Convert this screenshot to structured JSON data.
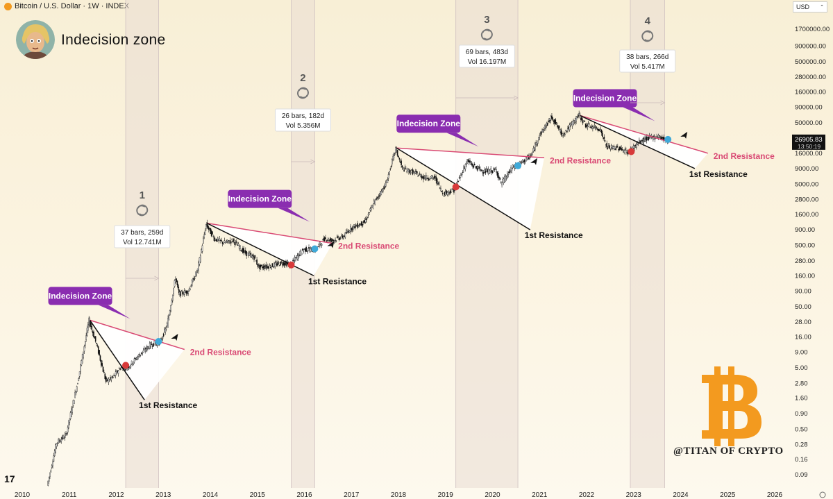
{
  "header": {
    "title": "Bitcoin / U.S. Dollar · 1W · INDEX",
    "currency": "USD"
  },
  "overlay": {
    "title": "Indecision zone",
    "watermark": "@TITAN OF CRYPTO",
    "tradingview_logo": "17"
  },
  "colors": {
    "background": "#fbf3df",
    "zone_fill": "#e9dcd3",
    "resistance_2": "#d94a74",
    "resistance_1": "#111111",
    "badge": "#8a2db0",
    "bitcoin": "#f39a1f",
    "marker_red": "#d83a3a",
    "marker_blue": "#3fa9d8"
  },
  "chart_data": {
    "type": "candlestick",
    "title": "Indecision zone",
    "x_axis": {
      "ticks": [
        "2010",
        "2011",
        "2012",
        "2013",
        "2014",
        "2015",
        "2016",
        "2017",
        "2018",
        "2019",
        "2020",
        "2021",
        "2022",
        "2023",
        "2024",
        "2025",
        "2026"
      ]
    },
    "y_axis": {
      "scale": "log",
      "ticks": [
        "0.09",
        "0.16",
        "0.28",
        "0.50",
        "0.90",
        "1.60",
        "2.80",
        "5.00",
        "9.00",
        "16.00",
        "28.00",
        "50.00",
        "90.00",
        "160.00",
        "280.00",
        "500.00",
        "900.00",
        "1600.00",
        "2800.00",
        "5000.00",
        "9000.00",
        "16000.00",
        "28000.00",
        "50000.00",
        "90000.00",
        "160000.00",
        "280000.00",
        "500000.00",
        "900000.00",
        "1700000.00"
      ]
    },
    "price": {
      "last": "26905.83",
      "countdown": "13:50:19",
      "points": [
        [
          2010.55,
          0.06
        ],
        [
          2010.75,
          0.3
        ],
        [
          2010.95,
          0.4
        ],
        [
          2011.2,
          3
        ],
        [
          2011.44,
          30
        ],
        [
          2011.6,
          12
        ],
        [
          2011.8,
          3
        ],
        [
          2011.95,
          3.5
        ],
        [
          2012.1,
          5
        ],
        [
          2012.25,
          5
        ],
        [
          2012.5,
          8
        ],
        [
          2012.75,
          12
        ],
        [
          2012.95,
          13
        ],
        [
          2013.1,
          25
        ],
        [
          2013.28,
          150
        ],
        [
          2013.35,
          80
        ],
        [
          2013.55,
          90
        ],
        [
          2013.75,
          200
        ],
        [
          2013.93,
          1100
        ],
        [
          2014.1,
          650
        ],
        [
          2014.3,
          550
        ],
        [
          2014.5,
          600
        ],
        [
          2014.75,
          380
        ],
        [
          2014.95,
          320
        ],
        [
          2015.05,
          220
        ],
        [
          2015.3,
          230
        ],
        [
          2015.55,
          260
        ],
        [
          2015.72,
          240
        ],
        [
          2015.85,
          320
        ],
        [
          2016.0,
          430
        ],
        [
          2016.25,
          420
        ],
        [
          2016.45,
          650
        ],
        [
          2016.6,
          600
        ],
        [
          2016.85,
          700
        ],
        [
          2017.0,
          950
        ],
        [
          2017.3,
          1200
        ],
        [
          2017.5,
          2500
        ],
        [
          2017.75,
          5000
        ],
        [
          2017.96,
          19000
        ],
        [
          2018.1,
          9000
        ],
        [
          2018.3,
          8000
        ],
        [
          2018.55,
          6500
        ],
        [
          2018.8,
          6300
        ],
        [
          2018.96,
          3500
        ],
        [
          2019.2,
          4000
        ],
        [
          2019.48,
          12000
        ],
        [
          2019.6,
          10000
        ],
        [
          2019.85,
          8000
        ],
        [
          2020.1,
          8500
        ],
        [
          2020.2,
          5000
        ],
        [
          2020.45,
          9500
        ],
        [
          2020.62,
          11000
        ],
        [
          2020.85,
          15000
        ],
        [
          2021.0,
          30000
        ],
        [
          2021.28,
          63000
        ],
        [
          2021.5,
          32000
        ],
        [
          2021.62,
          40000
        ],
        [
          2021.86,
          68000
        ],
        [
          2022.0,
          46000
        ],
        [
          2022.3,
          40000
        ],
        [
          2022.45,
          20000
        ],
        [
          2022.7,
          19500
        ],
        [
          2022.9,
          16500
        ],
        [
          2023.1,
          23000
        ],
        [
          2023.3,
          28000
        ],
        [
          2023.55,
          30000
        ],
        [
          2023.72,
          26000
        ],
        [
          2023.8,
          26905
        ]
      ]
    },
    "zones": [
      {
        "label": "1",
        "start": 2012.2,
        "end": 2012.9,
        "bars": "37 bars, 259d",
        "vol": "Vol 12.741M"
      },
      {
        "label": "2",
        "start": 2015.72,
        "end": 2016.22,
        "bars": "26 bars, 182d",
        "vol": "Vol 5.356M"
      },
      {
        "label": "3",
        "start": 2019.22,
        "end": 2020.54,
        "bars": "69 bars, 483d",
        "vol": "Vol 16.197M"
      },
      {
        "label": "4",
        "start": 2022.93,
        "end": 2023.66,
        "bars": "38 bars, 266d",
        "vol": "Vol 5.417M"
      }
    ],
    "badges": [
      "Indecision Zone",
      "Indecision Zone",
      "Indecision Zone",
      "Indecision Zone"
    ],
    "annotations": {
      "second_resistance": "2nd Resistance",
      "first_resistance": "1st Resistance"
    },
    "triangles": [
      {
        "peak": [
          2011.44,
          30
        ],
        "second_end": [
          2013.45,
          10
        ],
        "first_end": [
          2012.6,
          1.5
        ],
        "cross_red": [
          2012.2,
          5.5
        ],
        "cross_blue": [
          2012.9,
          13.5
        ]
      },
      {
        "peak": [
          2013.93,
          1150
        ],
        "second_end": [
          2016.6,
          540
        ],
        "first_end": [
          2016.2,
          160
        ],
        "cross_red": [
          2015.72,
          240
        ],
        "cross_blue": [
          2016.22,
          440
        ]
      },
      {
        "peak": [
          2017.96,
          19500
        ],
        "second_end": [
          2021.1,
          13500
        ],
        "first_end": [
          2020.8,
          900
        ],
        "cross_red": [
          2019.22,
          4500
        ],
        "cross_blue": [
          2020.54,
          10000
        ]
      },
      {
        "peak": [
          2021.86,
          66000
        ],
        "second_end": [
          2024.58,
          16000
        ],
        "first_end": [
          2024.3,
          9000
        ],
        "cross_red": [
          2022.95,
          17000
        ],
        "cross_blue": [
          2023.73,
          26905
        ]
      }
    ]
  }
}
